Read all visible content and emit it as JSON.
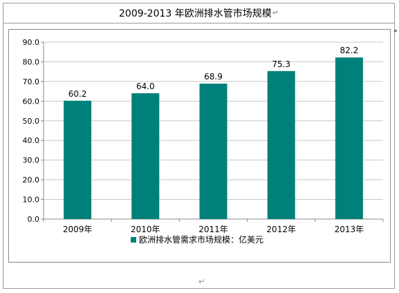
{
  "page": {
    "title": "2009-2013 年欧洲排水管市场规模",
    "para_mark": "↵"
  },
  "chart_data": {
    "type": "bar",
    "categories": [
      "2009年",
      "2010年",
      "2011年",
      "2012年",
      "2013年"
    ],
    "values": [
      60.2,
      64.0,
      68.9,
      75.3,
      82.2
    ],
    "value_labels": [
      "60.2",
      "64.0",
      "68.9",
      "75.3",
      "82.2"
    ],
    "series": [
      {
        "name": "欧洲排水管需求市场规模：亿美元",
        "values": [
          60.2,
          64.0,
          68.9,
          75.3,
          82.2
        ]
      }
    ],
    "ylim": [
      0,
      90
    ],
    "yticks": [
      "0.0",
      "10.0",
      "20.0",
      "30.0",
      "40.0",
      "50.0",
      "60.0",
      "70.0",
      "80.0",
      "90.0"
    ],
    "grid": true,
    "legend": "bottom",
    "bar_color": "#00807a"
  }
}
